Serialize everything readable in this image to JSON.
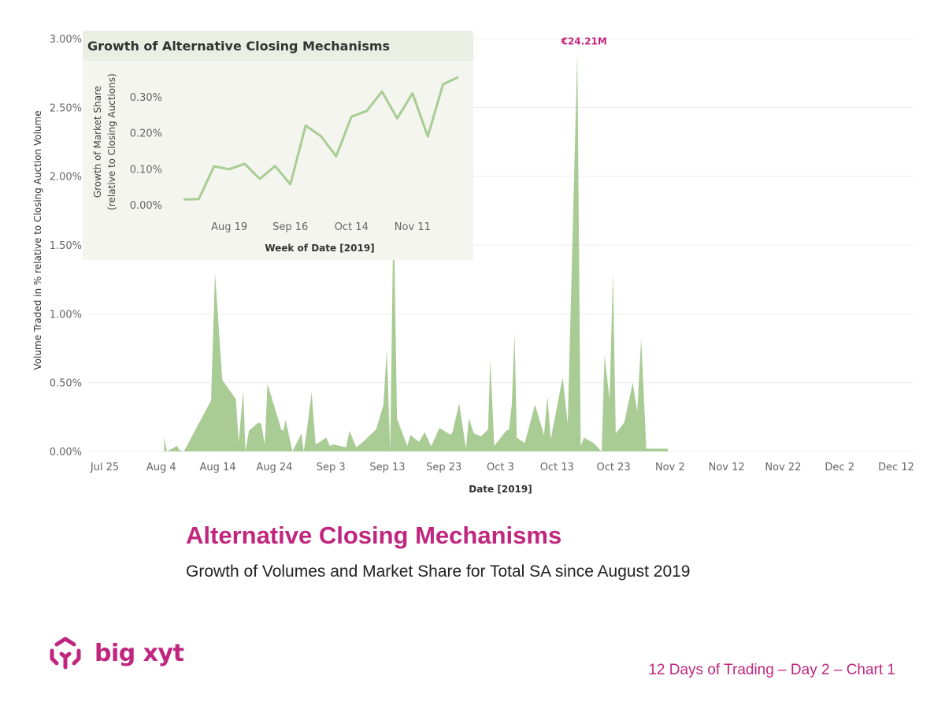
{
  "page": {
    "title": "Alternative Closing Mechanisms",
    "subtitle": "Growth of Volumes and Market Share for Total SA since August 2019",
    "footer": "12 Days of Trading – Day 2 – Chart 1",
    "brand": "big xyt"
  },
  "colors": {
    "area_fill": "#a9cc95",
    "line": "#a9cc95",
    "accent": "#c0267e",
    "inset_bg": "#f3f5ee",
    "grid": "#ececec"
  },
  "chart_data": [
    {
      "type": "area",
      "xlabel": "Date [2019]",
      "ylabel": "Volume Traded in % relative to Closing Auction Volume",
      "x_ticks": [
        "Jul 25",
        "Aug 4",
        "Aug 14",
        "Aug 24",
        "Sep 3",
        "Sep 13",
        "Sep 23",
        "Oct 3",
        "Oct 13",
        "Oct 23",
        "Nov 2",
        "Nov 12",
        "Nov 22",
        "Dec 2",
        "Dec 12"
      ],
      "y_ticks": [
        "0.00%",
        "0.50%",
        "1.00%",
        "1.50%",
        "2.00%",
        "2.50%",
        "3.00%"
      ],
      "ylim": [
        0,
        3.0
      ],
      "x_start": "Jul 25",
      "annotation": {
        "text": "€24.21M",
        "x": 84.8,
        "y": 2.9
      },
      "x": [
        10.5,
        11.0,
        12.8,
        13.2,
        14.0,
        18.8,
        19.5,
        20.8,
        23.2,
        23.7,
        24.5,
        24.9,
        25.5,
        27.2,
        27.7,
        28.3,
        28.8,
        30.8,
        31.2,
        31.6,
        32.0,
        33.2,
        34.8,
        35.2,
        35.9,
        36.6,
        37.3,
        39.2,
        39.8,
        40.5,
        42.7,
        43.3,
        44.5,
        46.0,
        46.7,
        48.0,
        49.3,
        49.9,
        50.5,
        51.1,
        51.7,
        53.5,
        54.1,
        54.6,
        55.6,
        56.6,
        57.7,
        57.9,
        59.2,
        61.2,
        61.5,
        62.7,
        63.9,
        64.4,
        65.3,
        66.6,
        67.8,
        68.2,
        68.9,
        71.0,
        71.5,
        72.0,
        72.5,
        72.9,
        74.3,
        76.1,
        77.7,
        78.3,
        78.9,
        81.0,
        81.9,
        83.6,
        84.2,
        84.8,
        86.5,
        87.2,
        87.9,
        88.4,
        89.3,
        89.9,
        90.4,
        91.9,
        93.4,
        94.2,
        94.9,
        95.8,
        97.5,
        98.5,
        99.0,
        99.6
      ],
      "values": [
        0.1,
        0.0,
        0.04,
        0.01,
        0.0,
        0.37,
        1.3,
        0.52,
        0.38,
        0.07,
        0.44,
        0.0,
        0.15,
        0.21,
        0.2,
        0.05,
        0.49,
        0.22,
        0.16,
        0.15,
        0.23,
        0.0,
        0.13,
        0.0,
        0.2,
        0.43,
        0.05,
        0.1,
        0.04,
        0.05,
        0.03,
        0.15,
        0.03,
        0.08,
        0.11,
        0.16,
        0.34,
        0.74,
        0.0,
        1.82,
        0.24,
        0.04,
        0.12,
        0.1,
        0.07,
        0.14,
        0.04,
        0.05,
        0.17,
        0.12,
        0.14,
        0.35,
        0.02,
        0.24,
        0.13,
        0.11,
        0.16,
        0.67,
        0.04,
        0.15,
        0.16,
        0.34,
        0.86,
        0.1,
        0.06,
        0.34,
        0.12,
        0.4,
        0.09,
        0.54,
        0.2,
        2.9,
        0.04,
        0.1,
        0.06,
        0.03,
        0.0,
        0.7,
        0.38,
        1.3,
        0.13,
        0.21,
        0.5,
        0.29,
        0.82,
        0.02,
        0.02,
        0.02,
        0.02,
        0.02
      ]
    },
    {
      "type": "line",
      "title": "Growth of Alternative Closing Mechanisms",
      "xlabel": "Week of Date [2019]",
      "ylabel": "Growth of Market Share",
      "ylabel2": "(relative to Closing Auctions)",
      "x_ticks": [
        "Aug 19",
        "Sep 16",
        "Oct 14",
        "Nov 11"
      ],
      "y_ticks": [
        "0.00%",
        "0.10%",
        "0.20%",
        "0.30%"
      ],
      "ylim": [
        -0.02,
        0.37
      ],
      "x": [
        "Jul 29",
        "Aug 5",
        "Aug 12",
        "Aug 19",
        "Aug 26",
        "Sep 2",
        "Sep 9",
        "Sep 16",
        "Sep 23",
        "Sep 30",
        "Oct 7",
        "Oct 14",
        "Oct 21",
        "Oct 28",
        "Nov 4",
        "Nov 11",
        "Nov 18",
        "Nov 25",
        "Dec 2"
      ],
      "values": [
        0.015,
        0.016,
        0.107,
        0.099,
        0.114,
        0.072,
        0.108,
        0.057,
        0.22,
        0.191,
        0.135,
        0.245,
        0.261,
        0.315,
        0.24,
        0.31,
        0.19,
        0.335,
        0.355
      ]
    }
  ]
}
